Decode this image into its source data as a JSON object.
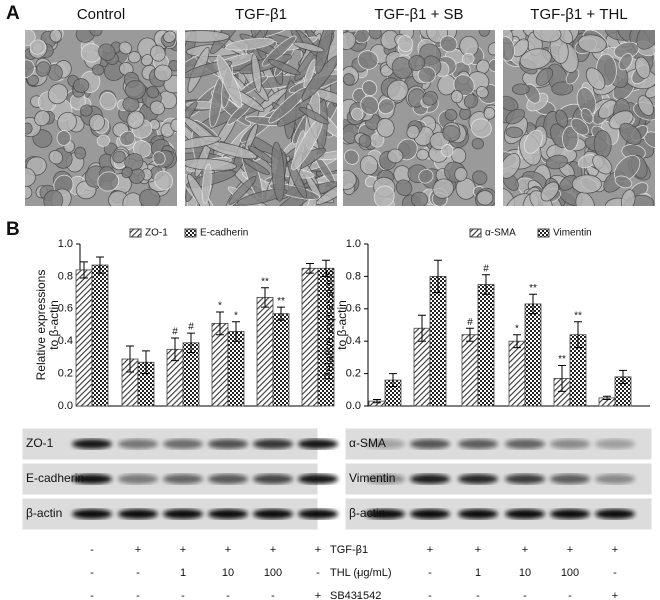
{
  "panels": {
    "A": {
      "label": "A",
      "images": [
        "Control",
        "TGF-β1",
        "TGF-β1 + SB",
        "TGF-β1 + THL"
      ]
    },
    "B": {
      "label": "B"
    }
  },
  "chart_data": [
    {
      "type": "bar",
      "categories": [
        null,
        null,
        null,
        null,
        null,
        null
      ],
      "ylabel": [
        "Relative expressions",
        "to β-actin"
      ],
      "ylim": [
        0,
        1.0
      ],
      "yticks": [
        {
          "value": 0,
          "label": "0.0"
        },
        0.2,
        0.4,
        0.6,
        0.8,
        {
          "value": 1.0,
          "label": "1.0"
        }
      ],
      "series": [
        {
          "name": "ZO-1",
          "color": "#444444",
          "pattern": "hatch",
          "values": [
            0.84,
            0.29,
            0.35,
            0.51,
            0.67,
            0.85
          ],
          "errors": [
            0.05,
            0.08,
            0.07,
            0.07,
            0.06,
            0.03
          ],
          "markers": [
            null,
            null,
            "#",
            "*",
            "**",
            null
          ]
        },
        {
          "name": "E-cadherin",
          "color": "#444444",
          "pattern": "check",
          "values": [
            0.87,
            0.27,
            0.39,
            0.46,
            0.57,
            0.85
          ],
          "errors": [
            0.05,
            0.07,
            0.06,
            0.06,
            0.04,
            0.05
          ],
          "markers": [
            null,
            null,
            "#",
            "*",
            "**",
            null
          ]
        }
      ]
    },
    {
      "type": "bar",
      "categories": [
        null,
        null,
        null,
        null,
        null,
        null
      ],
      "ylabel": [
        "Relative expressions",
        "to β-actin"
      ],
      "ylim": [
        0,
        1.0
      ],
      "yticks": [
        {
          "value": 0,
          "label": "0.0"
        },
        0.2,
        0.4,
        0.6,
        0.8,
        {
          "value": 1.0,
          "label": "1.0"
        }
      ],
      "series": [
        {
          "name": "α-SMA",
          "color": "#444444",
          "pattern": "hatch",
          "values": [
            0.03,
            0.48,
            0.44,
            0.4,
            0.17,
            0.05
          ],
          "errors": [
            0.01,
            0.08,
            0.04,
            0.04,
            0.08,
            0.01
          ],
          "markers": [
            null,
            null,
            "#",
            "*",
            "**",
            null
          ]
        },
        {
          "name": "Vimentin",
          "color": "#444444",
          "pattern": "check",
          "values": [
            0.16,
            0.8,
            0.75,
            0.63,
            0.44,
            0.18
          ],
          "errors": [
            0.04,
            0.1,
            0.06,
            0.06,
            0.08,
            0.04
          ],
          "markers": [
            null,
            null,
            "#",
            "**",
            "**",
            null
          ]
        }
      ]
    }
  ],
  "blots": [
    {
      "rows": [
        "ZO-1",
        "E-cadherin",
        "β-actin"
      ]
    },
    {
      "rows": [
        "α-SMA",
        "Vimentin",
        "β-actin"
      ]
    }
  ],
  "treatments": {
    "rows": [
      {
        "name": "TGF-β1",
        "values": [
          "-",
          "+",
          "+",
          "+",
          "+",
          "+"
        ]
      },
      {
        "name": "THL (μg/mL)",
        "values": [
          "-",
          "-",
          "1",
          "10",
          "100",
          "-"
        ]
      },
      {
        "name": "SB431542",
        "values": [
          "-",
          "-",
          "-",
          "-",
          "-",
          "+"
        ]
      }
    ]
  }
}
